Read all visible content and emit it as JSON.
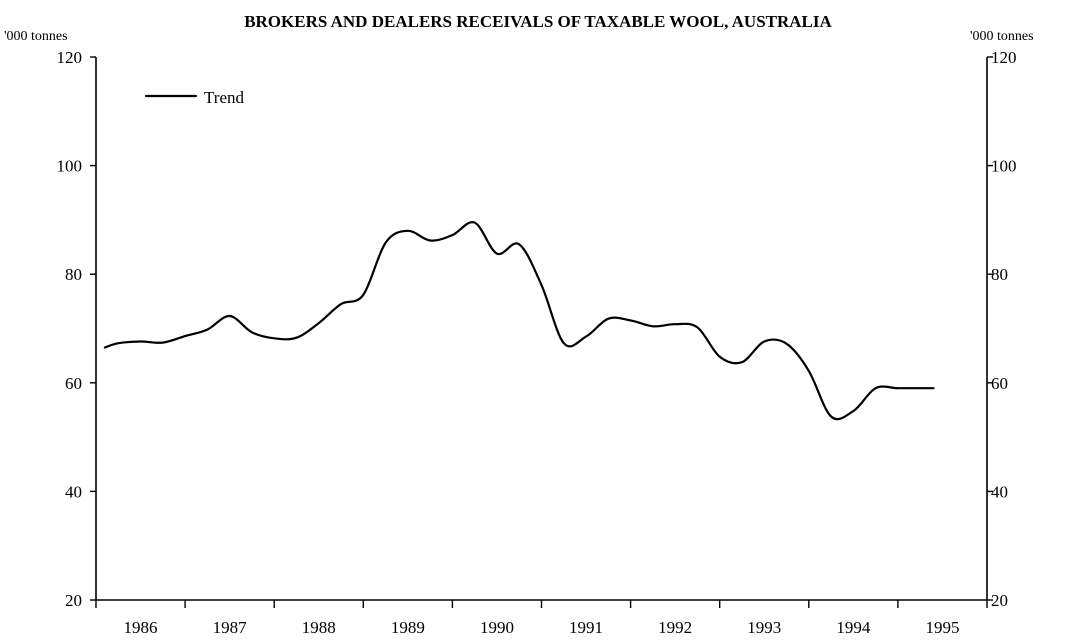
{
  "chart_data": {
    "type": "line",
    "title": "BROKERS AND DEALERS RECEIVALS OF TAXABLE WOOL, AUSTRALIA",
    "ylabel_left": "'000 tonnes",
    "ylabel_right": "'000 tonnes",
    "ylim": [
      20,
      120
    ],
    "yticks": [
      "20",
      "40",
      "60",
      "80",
      "100",
      "120"
    ],
    "xlim": [
      1985.5,
      1995.5
    ],
    "xticks": [
      "1986",
      "1987",
      "1988",
      "1989",
      "1990",
      "1991",
      "1992",
      "1993",
      "1994",
      "1995"
    ],
    "legend": {
      "position": "top-left",
      "entries": [
        "Trend"
      ]
    },
    "grid": false,
    "series": [
      {
        "name": "Trend",
        "x": [
          1985.6,
          1985.75,
          1986.0,
          1986.25,
          1986.5,
          1986.75,
          1987.0,
          1987.25,
          1987.5,
          1987.75,
          1988.0,
          1988.25,
          1988.5,
          1988.75,
          1989.0,
          1989.25,
          1989.5,
          1989.75,
          1990.0,
          1990.25,
          1990.5,
          1990.75,
          1991.0,
          1991.25,
          1991.5,
          1991.75,
          1992.0,
          1992.25,
          1992.5,
          1992.75,
          1993.0,
          1993.25,
          1993.5,
          1993.75,
          1994.0,
          1994.25,
          1994.5,
          1994.75,
          1994.9
        ],
        "y": [
          66.5,
          67.3,
          67.6,
          67.4,
          68.6,
          69.8,
          72.3,
          69.3,
          68.2,
          68.3,
          71.0,
          74.5,
          76.2,
          85.8,
          88.0,
          86.2,
          87.2,
          89.5,
          83.8,
          85.5,
          78.0,
          67.3,
          68.5,
          71.8,
          71.5,
          70.4,
          70.8,
          70.2,
          64.8,
          63.8,
          67.6,
          67.2,
          62.2,
          53.8,
          54.8,
          59.0,
          59.0,
          59.0,
          59.0
        ]
      }
    ]
  }
}
